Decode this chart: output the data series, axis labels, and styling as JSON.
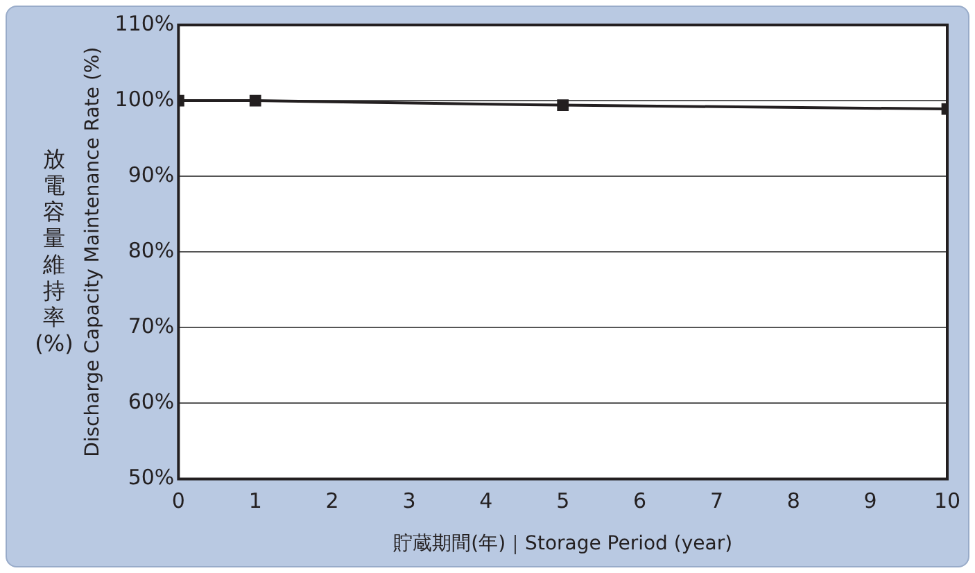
{
  "chart_data": {
    "type": "line",
    "xlabel": "貯蔵期間(年)｜Storage Period (year)",
    "ylabel": "Discharge Capacity Maintenance Rate (%)",
    "annotations": [
      "放電容量維持率(%)"
    ],
    "x": [
      0,
      1,
      5,
      10
    ],
    "series": [
      {
        "color": "#231f20",
        "values": [
          100,
          100,
          99.4,
          98.9
        ]
      }
    ],
    "xlim": [
      0,
      10
    ],
    "xticks": [
      0,
      1,
      2,
      3,
      4,
      5,
      6,
      7,
      8,
      9,
      10
    ],
    "ylim": [
      50,
      110
    ],
    "yticks": [
      {
        "value": 50,
        "label": "50%"
      },
      {
        "value": 60,
        "label": "60%"
      },
      {
        "value": 70,
        "label": "70%"
      },
      {
        "value": 80,
        "label": "80%"
      },
      {
        "value": 90,
        "label": "90%"
      },
      {
        "value": 100,
        "label": "100%"
      },
      {
        "value": 110,
        "label": "110%"
      }
    ],
    "grid": "y",
    "legend": false,
    "marker": "square",
    "line_style": "solid"
  }
}
